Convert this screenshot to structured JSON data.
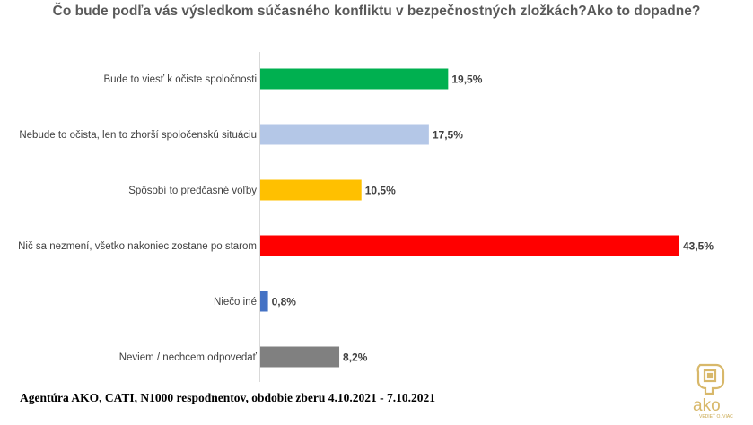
{
  "title": "Čo bude podľa vás výsledkom súčasného konfliktu v bezpečnostných zložkách?Ako to dopadne?",
  "footer": "Agentúra AKO,  CATI,  N1000 respodnentov,  obdobie zberu 4.10.2021 - 7.10.2021",
  "logo": {
    "text": "ako",
    "tagline": "VEDIEŤ O. VIAC",
    "icon": "ako-logo-icon",
    "color": "#d8b86a"
  },
  "chart_data": {
    "type": "bar",
    "orientation": "horizontal",
    "title": "Čo bude podľa vás výsledkom súčasného konfliktu v bezpečnostných zložkách?Ako to dopadne?",
    "xlabel": "",
    "ylabel": "",
    "grid": false,
    "xlim": [
      0,
      43.5
    ],
    "categories": [
      "Bude to viesť k očiste spoločnosti",
      "Nebude to očista, len to zhorší spoločenskú situáciu",
      "Spôsobí to predčasné voľby",
      "Nič sa nezmení, všetko nakoniec zostane po starom",
      "Niečo iné",
      "Neviem / nechcem odpovedať"
    ],
    "values": [
      19.5,
      17.5,
      10.5,
      43.5,
      0.8,
      8.2
    ],
    "value_labels": [
      "19,5%",
      "17,5%",
      "10,5%",
      "43,5%",
      "0,8%",
      "8,2%"
    ],
    "colors": [
      "#00b050",
      "#b4c7e7",
      "#ffc000",
      "#ff0000",
      "#4472c4",
      "#808080"
    ]
  }
}
